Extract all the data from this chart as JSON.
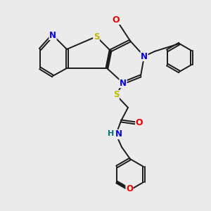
{
  "bg_color": "#ebebeb",
  "bond_color": "#1a1a1a",
  "atom_colors": {
    "N": "#0000ee",
    "O": "#ee0000",
    "S": "#bbbb00",
    "H": "#007070",
    "C": "#1a1a1a"
  },
  "figsize": [
    3.0,
    3.0
  ],
  "dpi": 100
}
